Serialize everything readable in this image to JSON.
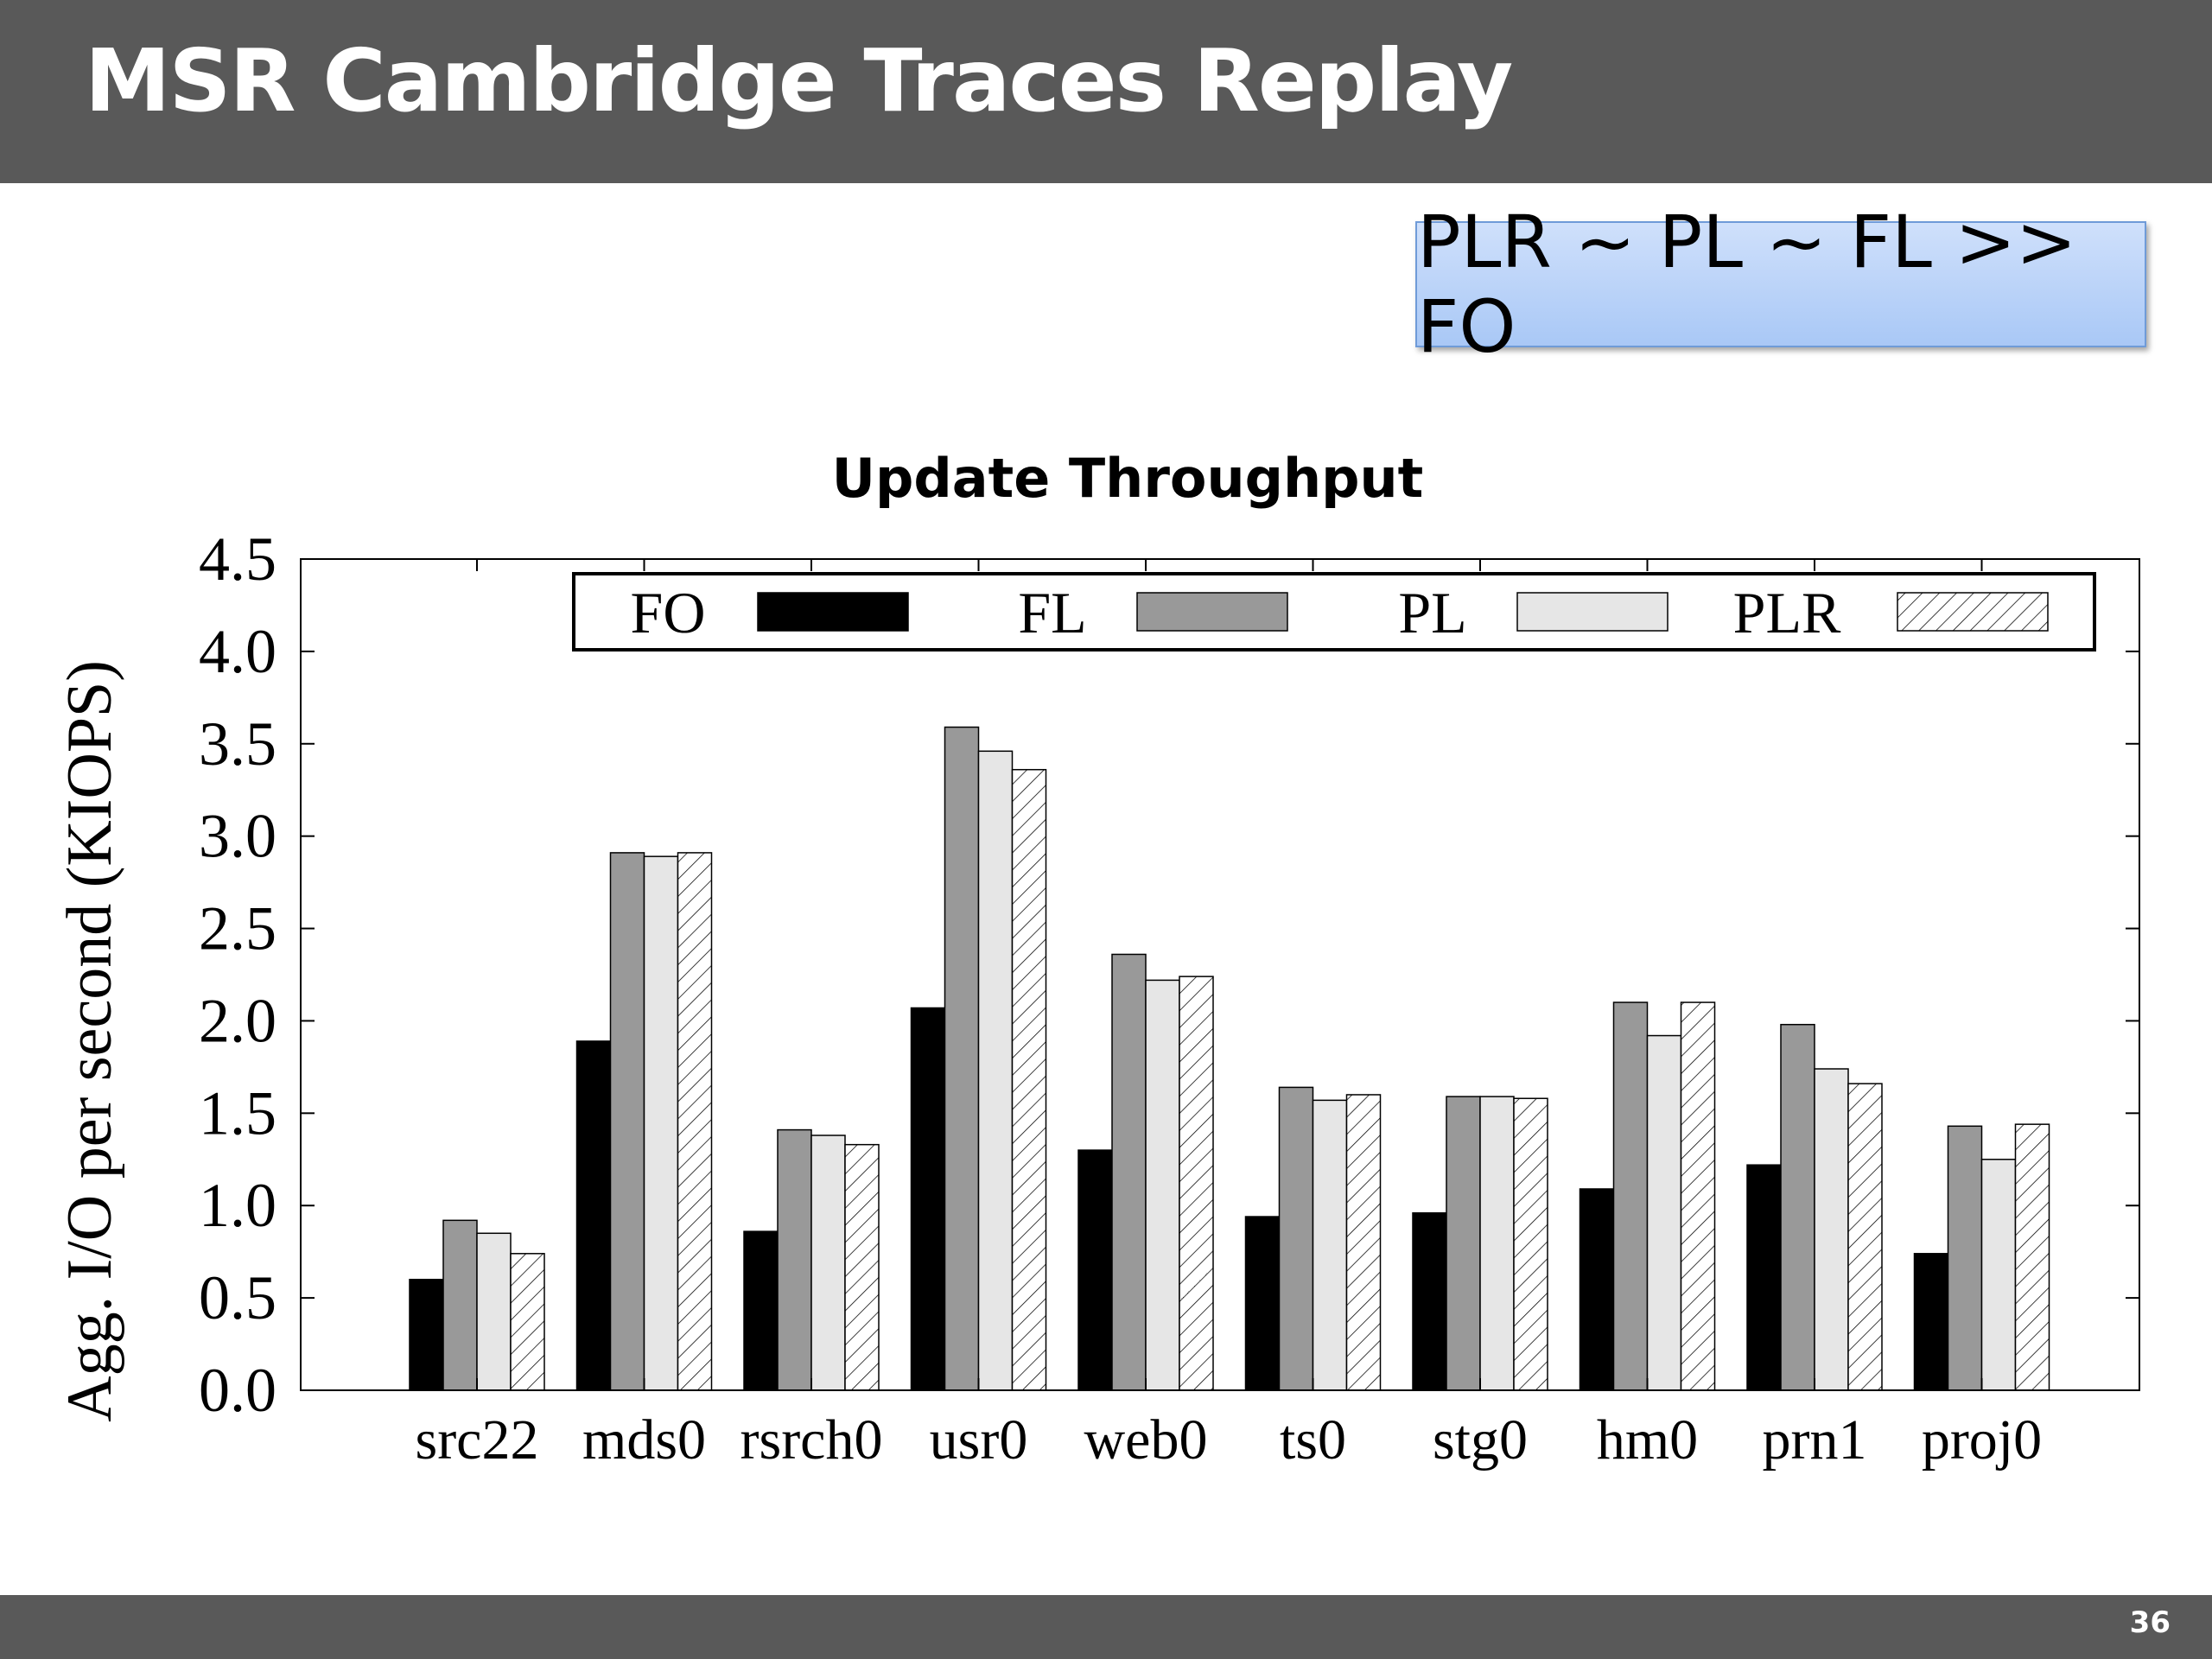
{
  "slide": {
    "title": "MSR Cambridge Traces Replay",
    "callout": "PLR ~ PL ~ FL >> FO",
    "page_number": "36"
  },
  "colors": {
    "header_bar": "#595959",
    "callout_fill": "#bcd5f8",
    "FO": "#000000",
    "FL": "#999999",
    "PL": "#e6e6e6",
    "PLR": "hatched"
  },
  "chart_data": {
    "type": "bar",
    "title": "Update Throughput",
    "xlabel": "",
    "ylabel": "Agg. I/O per second (KIOPS)",
    "ylim": [
      0,
      4.5
    ],
    "yticks": [
      "0.0",
      "0.5",
      "1.0",
      "1.5",
      "2.0",
      "2.5",
      "3.0",
      "3.5",
      "4.0",
      "4.5"
    ],
    "grid": false,
    "legend_position": "top",
    "categories": [
      "src22",
      "mds0",
      "rsrch0",
      "usr0",
      "web0",
      "ts0",
      "stg0",
      "hm0",
      "prn1",
      "proj0"
    ],
    "series": [
      {
        "name": "FO",
        "values": [
          0.6,
          1.89,
          0.86,
          2.07,
          1.3,
          0.94,
          0.96,
          1.09,
          1.22,
          0.74
        ]
      },
      {
        "name": "FL",
        "values": [
          0.92,
          2.91,
          1.41,
          3.59,
          2.36,
          1.64,
          1.59,
          2.1,
          1.98,
          1.43
        ]
      },
      {
        "name": "PL",
        "values": [
          0.85,
          2.89,
          1.38,
          3.46,
          2.22,
          1.57,
          1.59,
          1.92,
          1.74,
          1.25
        ]
      },
      {
        "name": "PLR",
        "values": [
          0.74,
          2.91,
          1.33,
          3.36,
          2.24,
          1.6,
          1.58,
          2.1,
          1.66,
          1.44
        ]
      }
    ]
  }
}
